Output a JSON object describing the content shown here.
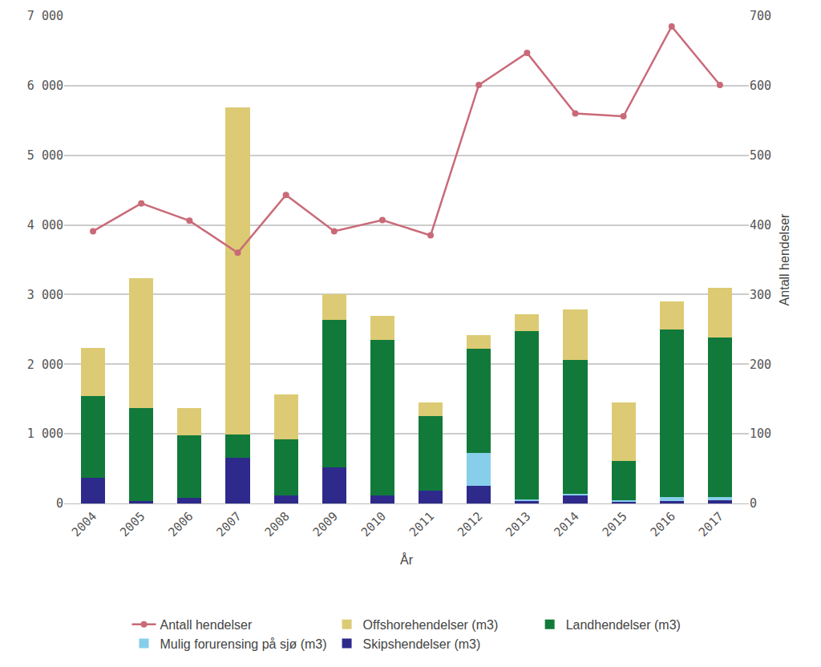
{
  "chart_data": {
    "type": "bar",
    "stacked": true,
    "grid": true,
    "legend": "bottom",
    "x_label": "År",
    "y2_label": "Antall hendelser",
    "categories": [
      "2004",
      "2005",
      "2006",
      "2007",
      "2008",
      "2009",
      "2010",
      "2011",
      "2012",
      "2013",
      "2014",
      "2015",
      "2016",
      "2017"
    ],
    "ylim": [
      0,
      7000
    ],
    "yticks": [
      0,
      {
        "value": 1000,
        "label": "1 000"
      },
      {
        "value": 2000,
        "label": "2 000"
      },
      {
        "value": 3000,
        "label": "3 000"
      },
      {
        "value": 4000,
        "label": "4 000"
      },
      {
        "value": 5000,
        "label": "5 000"
      },
      {
        "value": 6000,
        "label": "6 000"
      },
      {
        "value": 7000,
        "label": "7 000"
      }
    ],
    "y2lim": [
      0,
      700
    ],
    "y2ticks": [
      0,
      100,
      200,
      300,
      400,
      500,
      600,
      700
    ],
    "series": [
      {
        "name": "Skipshendelser (m3)",
        "type": "bar",
        "color": "#2e2a8c",
        "values": [
          370,
          30,
          80,
          655,
          120,
          520,
          110,
          190,
          250,
          30,
          120,
          30,
          30,
          50
        ]
      },
      {
        "name": "Mulig forurensing på sjø (m3)",
        "type": "bar",
        "color": "#87ceeb",
        "values": [
          0,
          0,
          0,
          0,
          0,
          0,
          0,
          0,
          480,
          30,
          20,
          15,
          60,
          40
        ]
      },
      {
        "name": "Landhendelser (m3)",
        "type": "bar",
        "color": "#117a3a",
        "values": [
          1170,
          1340,
          895,
          335,
          805,
          2120,
          2235,
          1070,
          1490,
          2410,
          1920,
          570,
          2405,
          2290
        ]
      },
      {
        "name": "Offshorehendelser (m3)",
        "type": "bar",
        "color": "#dccb74",
        "values": [
          690,
          1865,
          395,
          4700,
          645,
          370,
          345,
          185,
          200,
          245,
          730,
          840,
          405,
          720
        ]
      },
      {
        "name": "Antall hendelser",
        "type": "line",
        "axis": "y2",
        "color": "#c96a78",
        "marker": "circle",
        "values": [
          391,
          431,
          406,
          360,
          443,
          391,
          407,
          385,
          601,
          647,
          560,
          556,
          685,
          601
        ]
      }
    ]
  }
}
